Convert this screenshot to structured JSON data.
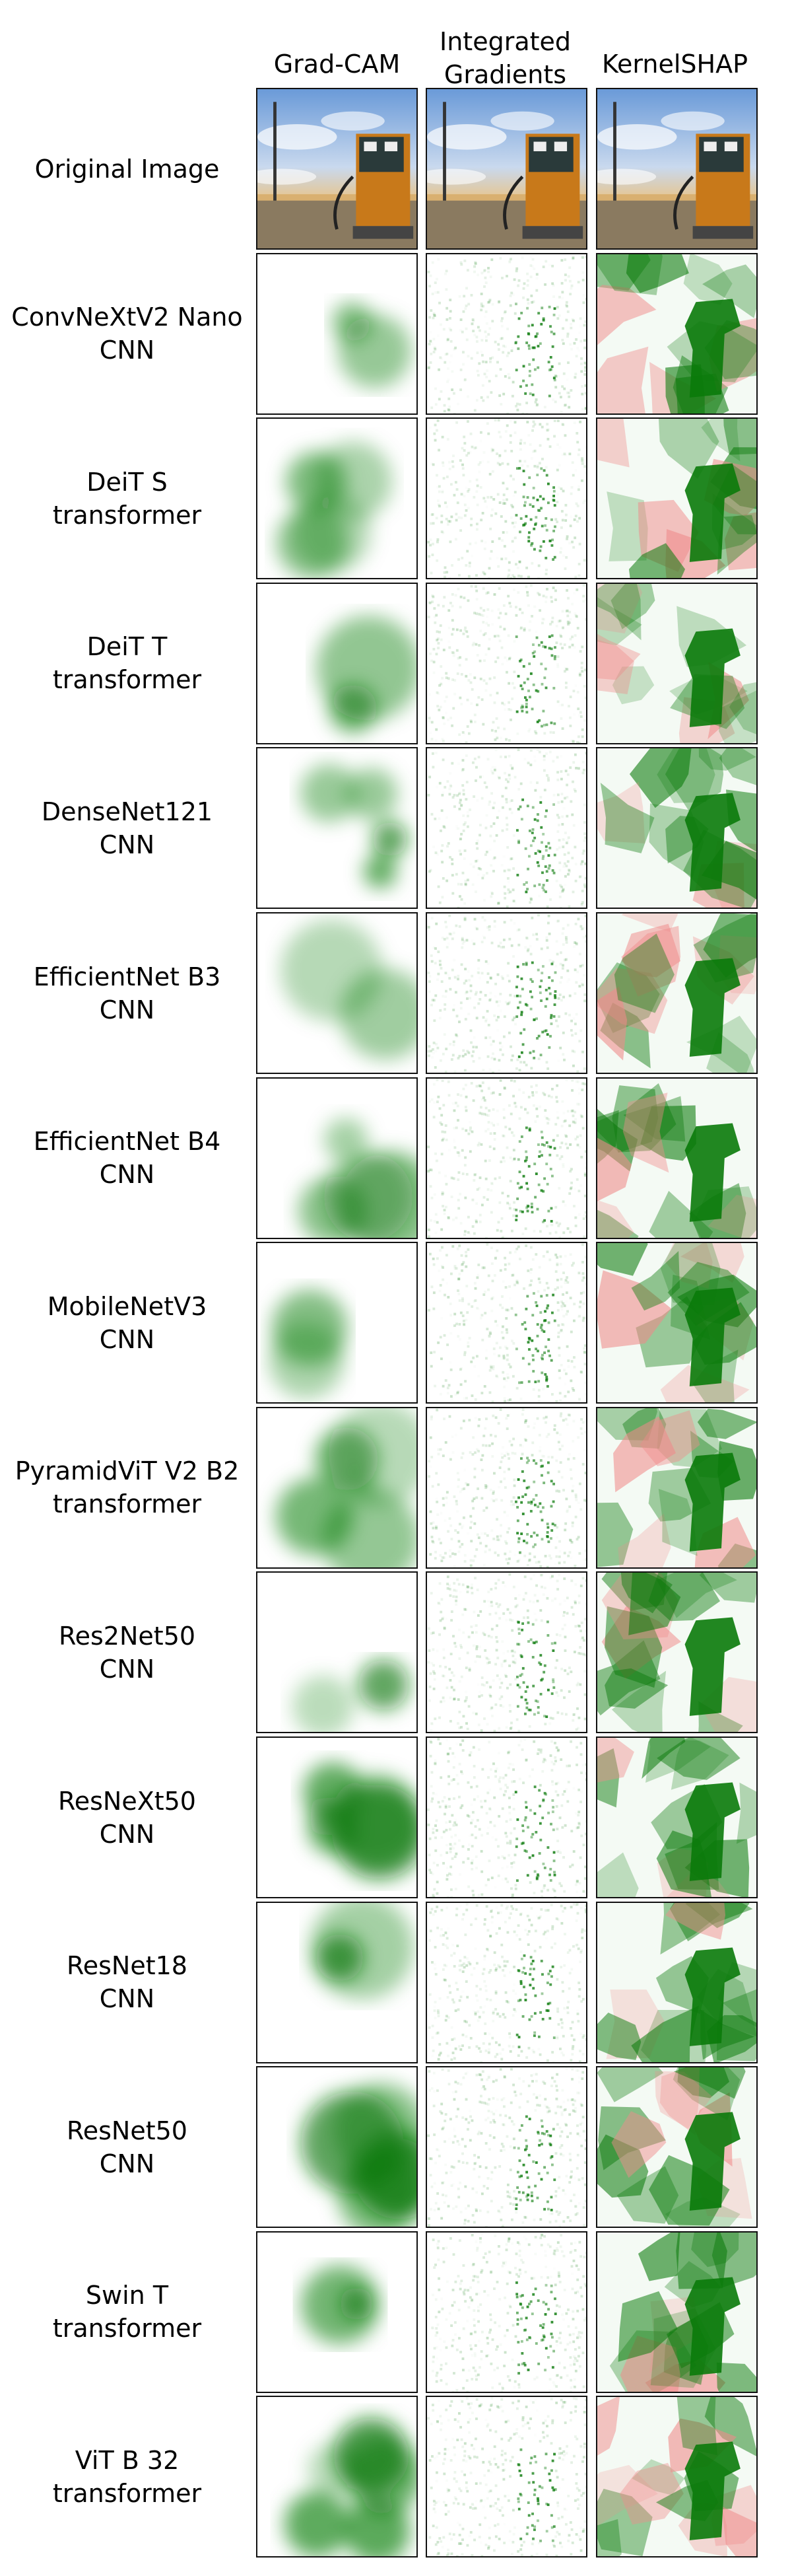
{
  "columns": [
    "Grad-CAM",
    "Integrated\nGradients",
    "KernelSHAP"
  ],
  "rows": [
    {
      "name": "Original Image",
      "type": ""
    },
    {
      "name": "ConvNeXtV2 Nano",
      "type": "CNN"
    },
    {
      "name": "DeiT S",
      "type": "transformer"
    },
    {
      "name": "DeiT T",
      "type": "transformer"
    },
    {
      "name": "DenseNet121",
      "type": "CNN"
    },
    {
      "name": "EfficientNet B3",
      "type": "CNN"
    },
    {
      "name": "EfficientNet B4",
      "type": "CNN"
    },
    {
      "name": "MobileNetV3",
      "type": "CNN"
    },
    {
      "name": "PyramidViT V2 B2",
      "type": "transformer"
    },
    {
      "name": "Res2Net50",
      "type": "CNN"
    },
    {
      "name": "ResNeXt50",
      "type": "CNN"
    },
    {
      "name": "ResNet18",
      "type": "CNN"
    },
    {
      "name": "ResNet50",
      "type": "CNN"
    },
    {
      "name": "Swin T",
      "type": "transformer"
    },
    {
      "name": "ViT B 32",
      "type": "transformer"
    }
  ],
  "colors": {
    "positive": "#0a7a0a",
    "negative": "#f08a8a",
    "sky": "#6a9ad8",
    "pump": "#c8791a"
  }
}
